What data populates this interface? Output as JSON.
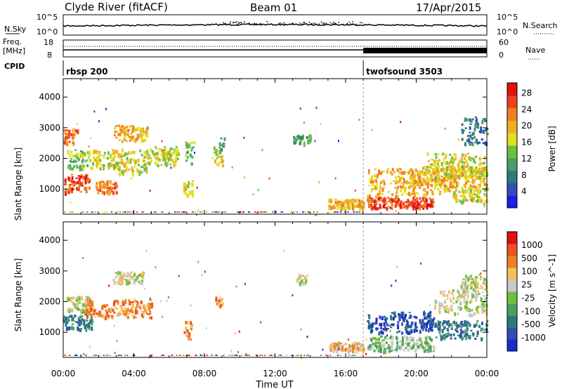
{
  "header": {
    "station": "Clyde River (fitACF)",
    "beam": "Beam 01",
    "date": "17/Apr/2015"
  },
  "summary": {
    "nsky_label": "N.Sky",
    "nsky_ticks": [
      "10^5",
      "10^0"
    ],
    "nsearch_label": "N.Search",
    "nsearch_ticks": [
      "10^5",
      "10^0"
    ],
    "freq_label": "Freq.",
    "freq_unit": "[MHz]",
    "freq_ticks": [
      "18",
      "8"
    ],
    "nave_label": "Nave",
    "nave_ticks": [
      "60",
      "0"
    ],
    "cpid_label": "CPID",
    "cpid_segments": [
      {
        "name": "rbsp 200",
        "start_hour": 0,
        "end_hour": 17.0
      },
      {
        "name": "twofsound 3503",
        "start_hour": 17.0,
        "end_hour": 24
      }
    ]
  },
  "axes": {
    "xlabel": "Time UT",
    "x_ticks": [
      "00:00",
      "04:00",
      "08:00",
      "12:00",
      "16:00",
      "20:00",
      "00:00"
    ],
    "ylabel": "Slant Range [km]",
    "y_ticks": [
      "1000",
      "2000",
      "3000",
      "4000"
    ]
  },
  "chart_data": [
    {
      "type": "heatmap",
      "name": "Power",
      "xlabel": "Time UT",
      "ylabel": "Slant Range [km]",
      "xlim_hours": [
        0,
        24
      ],
      "ylim_km": [
        180,
        4600
      ],
      "colorbar": {
        "label": "Power [dB]",
        "ticks": [
          "4",
          "8",
          "12",
          "16",
          "20",
          "24",
          "28"
        ],
        "colors": [
          "#1a1ee8",
          "#2f4fbf",
          "#2f7a78",
          "#4a9e6a",
          "#6cc040",
          "#e0e020",
          "#f0b020",
          "#f08020",
          "#ee4020",
          "#e01010"
        ]
      },
      "regions": [
        {
          "t0": 0.0,
          "t1": 1.5,
          "r0": 900,
          "r1": 1500,
          "level": 8
        },
        {
          "t0": 0.2,
          "t1": 1.5,
          "r0": 1700,
          "r1": 2300,
          "level": 4
        },
        {
          "t0": 0.0,
          "t1": 0.8,
          "r0": 2500,
          "r1": 3000,
          "level": 7
        },
        {
          "t0": 1.8,
          "t1": 3.0,
          "r0": 900,
          "r1": 1300,
          "level": 7
        },
        {
          "t0": 1.5,
          "t1": 3.2,
          "r0": 1700,
          "r1": 2300,
          "level": 5
        },
        {
          "t0": 2.8,
          "t1": 4.8,
          "r0": 2600,
          "r1": 3100,
          "level": 6
        },
        {
          "t0": 3.0,
          "t1": 4.8,
          "r0": 1500,
          "r1": 2300,
          "level": 5
        },
        {
          "t0": 4.5,
          "t1": 6.5,
          "r0": 1800,
          "r1": 2400,
          "level": 5
        },
        {
          "t0": 6.8,
          "t1": 7.3,
          "r0": 800,
          "r1": 1300,
          "level": 5
        },
        {
          "t0": 6.9,
          "t1": 7.4,
          "r0": 1800,
          "r1": 2600,
          "level": 4
        },
        {
          "t0": 8.5,
          "t1": 9.0,
          "r0": 1800,
          "r1": 2400,
          "level": 5
        },
        {
          "t0": 8.8,
          "t1": 9.1,
          "r0": 2200,
          "r1": 2700,
          "level": 3
        },
        {
          "t0": 13.0,
          "t1": 14.0,
          "r0": 2500,
          "r1": 2800,
          "level": 3
        },
        {
          "t0": 15.0,
          "t1": 17.0,
          "r0": 400,
          "r1": 700,
          "level": 6
        },
        {
          "t0": 17.2,
          "t1": 21.0,
          "r0": 400,
          "r1": 750,
          "level": 8
        },
        {
          "t0": 17.2,
          "t1": 22.0,
          "r0": 800,
          "r1": 1700,
          "level": 6
        },
        {
          "t0": 19.5,
          "t1": 24.0,
          "r0": 1100,
          "r1": 1800,
          "level": 6
        },
        {
          "t0": 20.5,
          "t1": 24.0,
          "r0": 1400,
          "r1": 2200,
          "level": 5
        },
        {
          "t0": 22.0,
          "t1": 24.0,
          "r0": 600,
          "r1": 1100,
          "level": 5
        },
        {
          "t0": 22.5,
          "t1": 24.0,
          "r0": 2500,
          "r1": 3400,
          "level": 2
        }
      ]
    },
    {
      "type": "heatmap",
      "name": "Velocity",
      "xlabel": "Time UT",
      "ylabel": "Slant Range [km]",
      "xlim_hours": [
        0,
        24
      ],
      "ylim_km": [
        180,
        4600
      ],
      "colorbar": {
        "label": "Velocity [m s^-1]",
        "ticks": [
          "1000",
          "500",
          "100",
          "25",
          "-25",
          "-100",
          "-500",
          "-1000"
        ],
        "colors": [
          "#1a2ad0",
          "#2f50b0",
          "#2f7a78",
          "#4aa060",
          "#70c040",
          "#c8c8c8",
          "#f0c060",
          "#f08020",
          "#ee5020",
          "#e01010"
        ]
      },
      "regions": [
        {
          "t0": 0.0,
          "t1": 1.6,
          "r0": 1100,
          "r1": 1600,
          "level": 2
        },
        {
          "t0": 0.2,
          "t1": 1.6,
          "r0": 1700,
          "r1": 2200,
          "level": 5
        },
        {
          "t0": 1.2,
          "t1": 3.0,
          "r0": 1500,
          "r1": 2100,
          "level": 7
        },
        {
          "t0": 3.0,
          "t1": 5.0,
          "r0": 1500,
          "r1": 2100,
          "level": 7
        },
        {
          "t0": 2.8,
          "t1": 4.5,
          "r0": 2600,
          "r1": 3000,
          "level": 5
        },
        {
          "t0": 6.8,
          "t1": 7.3,
          "r0": 800,
          "r1": 1400,
          "level": 7
        },
        {
          "t0": 8.6,
          "t1": 9.0,
          "r0": 1800,
          "r1": 2200,
          "level": 7
        },
        {
          "t0": 13.2,
          "t1": 13.8,
          "r0": 2600,
          "r1": 2900,
          "level": 5
        },
        {
          "t0": 15.0,
          "t1": 17.0,
          "r0": 400,
          "r1": 700,
          "level": 6
        },
        {
          "t0": 17.2,
          "t1": 21.0,
          "r0": 1000,
          "r1": 1700,
          "level": 1
        },
        {
          "t0": 17.2,
          "t1": 21.0,
          "r0": 400,
          "r1": 900,
          "level": 4
        },
        {
          "t0": 21.0,
          "t1": 24.0,
          "r0": 800,
          "r1": 1400,
          "level": 2
        },
        {
          "t0": 21.0,
          "t1": 24.0,
          "r0": 1600,
          "r1": 2400,
          "level": 5
        },
        {
          "t0": 22.5,
          "t1": 24.0,
          "r0": 2400,
          "r1": 2900,
          "level": 5
        }
      ]
    }
  ]
}
